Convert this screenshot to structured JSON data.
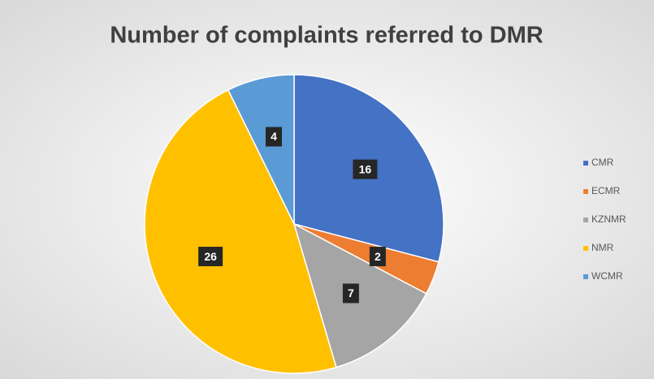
{
  "chart_data": {
    "type": "pie",
    "title": "Number of complaints referred to DMR",
    "categories": [
      "CMR",
      "ECMR",
      "KZNMR",
      "NMR",
      "WCMR"
    ],
    "values": [
      16,
      2,
      7,
      26,
      4
    ],
    "colors": [
      "#4472c4",
      "#ed7d31",
      "#a5a5a5",
      "#ffc000",
      "#5b9bd5"
    ],
    "legend": "right"
  }
}
